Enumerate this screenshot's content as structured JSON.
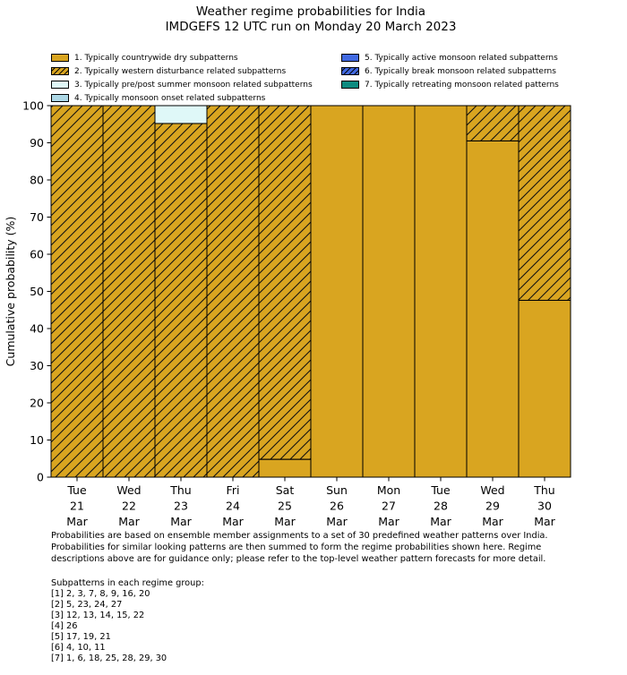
{
  "title": {
    "line1": "Weather regime probabilities for India",
    "line2": "IMDGEFS 12 UTC run on Monday 20 March 2023"
  },
  "colors": {
    "dry_orange": "#D9A520",
    "pre_post_monsoon": "#DFF8F8",
    "monsoon_onset": "#ADD8E6",
    "active_monsoon": "#4169E1",
    "retreating_monsoon": "#0E8B80",
    "hatch_line": "#111111",
    "bar_edge": "#000000"
  },
  "legend": {
    "items": [
      {
        "label": "1. Typically countrywide dry subpatterns",
        "color": "#D9A520",
        "hatch": false
      },
      {
        "label": "2. Typically western disturbance related subpatterns",
        "color": "#D9A520",
        "hatch": true
      },
      {
        "label": "3. Typically pre/post summer monsoon related subpatterns",
        "color": "#DFF8F8",
        "hatch": false
      },
      {
        "label": "4. Typically monsoon onset related subpatterns",
        "color": "#ADD8E6",
        "hatch": false
      },
      {
        "label": "5. Typically active monsoon related subpatterns",
        "color": "#4169E1",
        "hatch": false
      },
      {
        "label": "6. Typically break monsoon related subpatterns",
        "color": "#4169E1",
        "hatch": true
      },
      {
        "label": "7. Typically retreating monsoon related patterns",
        "color": "#0E8B80",
        "hatch": false
      }
    ]
  },
  "chart_data": {
    "type": "bar",
    "stacked": true,
    "title": "Weather regime probabilities for India",
    "subtitle": "IMDGEFS 12 UTC run on Monday 20 March 2023",
    "categories": [
      {
        "day": "Tue",
        "date": "21",
        "month": "Mar"
      },
      {
        "day": "Wed",
        "date": "22",
        "month": "Mar"
      },
      {
        "day": "Thu",
        "date": "23",
        "month": "Mar"
      },
      {
        "day": "Fri",
        "date": "24",
        "month": "Mar"
      },
      {
        "day": "Sat",
        "date": "25",
        "month": "Mar"
      },
      {
        "day": "Sun",
        "date": "26",
        "month": "Mar"
      },
      {
        "day": "Mon",
        "date": "27",
        "month": "Mar"
      },
      {
        "day": "Tue",
        "date": "28",
        "month": "Mar"
      },
      {
        "day": "Wed",
        "date": "29",
        "month": "Mar"
      },
      {
        "day": "Thu",
        "date": "30",
        "month": "Mar"
      }
    ],
    "series": [
      {
        "name": "1. Typically countrywide dry subpatterns",
        "color": "#D9A520",
        "hatch": false,
        "values": [
          0,
          0,
          0,
          0,
          4.8,
          100,
          100,
          100,
          90.5,
          47.6
        ]
      },
      {
        "name": "2. Typically western disturbance related subpatterns",
        "color": "#D9A520",
        "hatch": true,
        "values": [
          100,
          100,
          95.2,
          100,
          95.2,
          0,
          0,
          0,
          9.5,
          52.4
        ]
      },
      {
        "name": "3. Typically pre/post summer monsoon related subpatterns",
        "color": "#DFF8F8",
        "hatch": false,
        "values": [
          0,
          0,
          4.8,
          0,
          0,
          0,
          0,
          0,
          0,
          0
        ]
      },
      {
        "name": "4. Typically monsoon onset related subpatterns",
        "color": "#ADD8E6",
        "hatch": false,
        "values": [
          0,
          0,
          0,
          0,
          0,
          0,
          0,
          0,
          0,
          0
        ]
      },
      {
        "name": "5. Typically active monsoon related subpatterns",
        "color": "#4169E1",
        "hatch": false,
        "values": [
          0,
          0,
          0,
          0,
          0,
          0,
          0,
          0,
          0,
          0
        ]
      },
      {
        "name": "6. Typically break monsoon related subpatterns",
        "color": "#4169E1",
        "hatch": true,
        "values": [
          0,
          0,
          0,
          0,
          0,
          0,
          0,
          0,
          0,
          0
        ]
      },
      {
        "name": "7. Typically retreating monsoon related patterns",
        "color": "#0E8B80",
        "hatch": false,
        "values": [
          0,
          0,
          0,
          0,
          0,
          0,
          0,
          0,
          0,
          0
        ]
      }
    ],
    "xlabel": "",
    "ylabel": "Cumulative probability (%)",
    "ylim": [
      0,
      100
    ],
    "yticks": [
      0,
      10,
      20,
      30,
      40,
      50,
      60,
      70,
      80,
      90,
      100
    ],
    "grid": false,
    "legend_position": "top"
  },
  "footer": {
    "note_lines": [
      "Probabilities are based on ensemble member assignments to a set of 30 predefined weather patterns over India.",
      "Probabilities for similar looking patterns are then summed to form the regime probabilities shown here. Regime",
      "descriptions above are for guidance only; please refer to the top-level weather pattern forecasts for more detail."
    ],
    "subpatterns_header": "Subpatterns in each regime group:",
    "subpatterns": [
      "[1] 2, 3, 7, 8, 9, 16, 20",
      "[2] 5, 23, 24, 27",
      "[3] 12, 13, 14, 15, 22",
      "[4] 26",
      "[5] 17, 19, 21",
      "[6] 4, 10, 11",
      "[7] 1, 6, 18, 25, 28, 29, 30"
    ]
  }
}
